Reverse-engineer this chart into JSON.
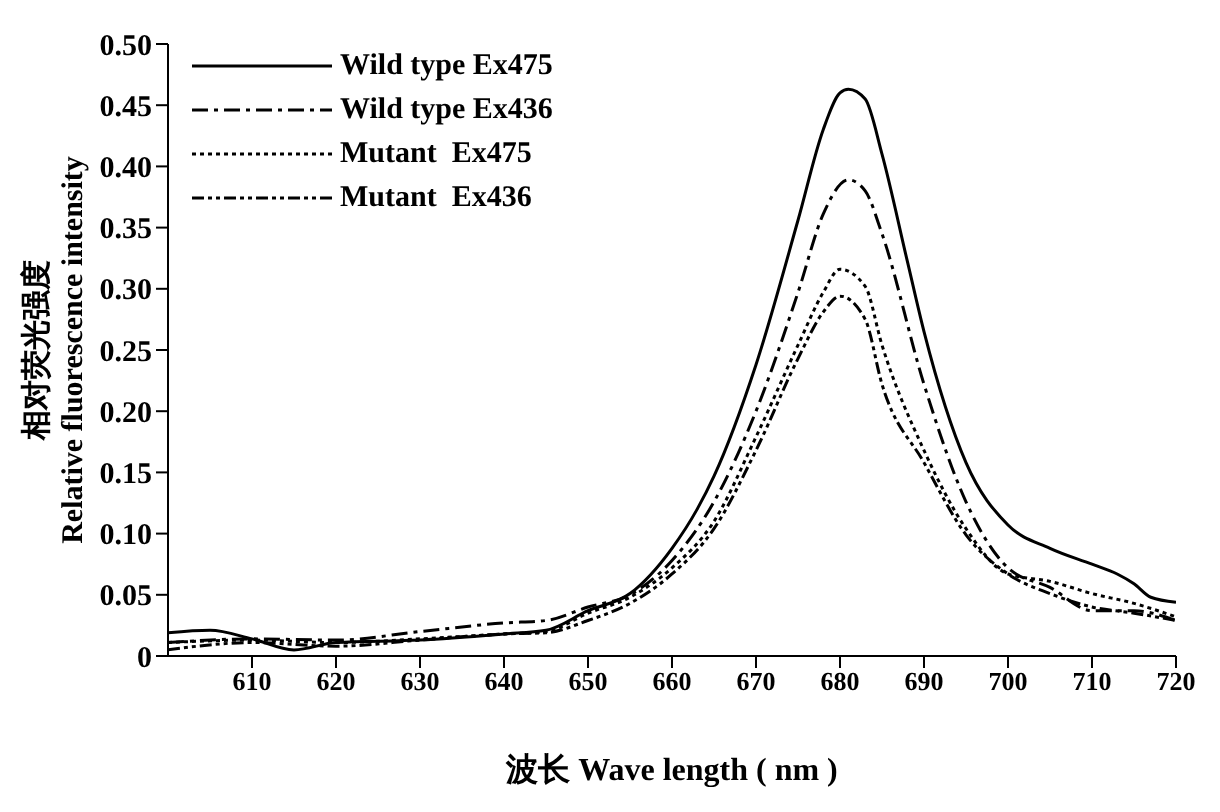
{
  "chart_data": {
    "type": "line",
    "xlabel": "波长  Wave length ( nm )",
    "ylabel": "相对荧光强度\nRelative fluorescence intensity",
    "xlim": [
      600,
      720
    ],
    "xticks": [
      610,
      620,
      630,
      640,
      650,
      660,
      670,
      680,
      690,
      700,
      710,
      720
    ],
    "ylim": [
      0,
      0.5
    ],
    "yticks": [
      0,
      {
        "value": 0.05,
        "label": "0.05"
      },
      {
        "value": 0.1,
        "label": "0.10"
      },
      {
        "value": 0.15,
        "label": "0.15"
      },
      {
        "value": 0.2,
        "label": "0.20"
      },
      {
        "value": 0.25,
        "label": "0.25"
      },
      {
        "value": 0.3,
        "label": "0.30"
      },
      {
        "value": 0.35,
        "label": "0.35"
      },
      {
        "value": 0.4,
        "label": "0.40"
      },
      {
        "value": 0.45,
        "label": "0.45"
      },
      {
        "value": 0.5,
        "label": "0.50"
      }
    ],
    "grid": false,
    "legend": "top left",
    "marker": "none",
    "series": [
      {
        "name": "Wild type Ex475",
        "color": "#000000",
        "line_style": "solid",
        "x": [
          600,
          605,
          610,
          615,
          620,
          630,
          640,
          645,
          650,
          655,
          660,
          663,
          665,
          670,
          675,
          678,
          680,
          681,
          683,
          685,
          688,
          690,
          695,
          700,
          705,
          710,
          713,
          715,
          717,
          720
        ],
        "values": [
          0.019,
          0.021,
          0.014,
          0.005,
          0.011,
          0.013,
          0.018,
          0.021,
          0.037,
          0.051,
          0.088,
          0.12,
          0.147,
          0.238,
          0.356,
          0.43,
          0.46,
          0.463,
          0.455,
          0.41,
          0.323,
          0.265,
          0.158,
          0.107,
          0.088,
          0.075,
          0.067,
          0.059,
          0.048,
          0.044
        ]
      },
      {
        "name": "Wild type Ex436",
        "color": "#000000",
        "line_style": "dashed",
        "x": [
          600,
          610,
          620,
          630,
          640,
          645,
          650,
          655,
          660,
          665,
          670,
          675,
          678,
          681,
          683,
          685,
          690,
          695,
          700,
          705,
          710,
          715,
          720
        ],
        "values": [
          0.011,
          0.014,
          0.013,
          0.02,
          0.027,
          0.029,
          0.04,
          0.05,
          0.078,
          0.126,
          0.2,
          0.297,
          0.361,
          0.389,
          0.38,
          0.345,
          0.222,
          0.126,
          0.072,
          0.056,
          0.037,
          0.037,
          0.029
        ]
      },
      {
        "name": "Mutant  Ex475",
        "color": "#000000",
        "line_style": "dotted",
        "x": [
          600,
          610,
          620,
          630,
          640,
          645,
          650,
          655,
          660,
          665,
          670,
          675,
          678,
          680,
          683,
          685,
          690,
          695,
          700,
          705,
          710,
          715,
          720
        ],
        "values": [
          0.011,
          0.013,
          0.011,
          0.014,
          0.018,
          0.02,
          0.035,
          0.048,
          0.072,
          0.11,
          0.179,
          0.254,
          0.297,
          0.316,
          0.302,
          0.254,
          0.168,
          0.104,
          0.067,
          0.061,
          0.051,
          0.043,
          0.032
        ]
      },
      {
        "name": "Mutant  Ex436",
        "color": "#000000",
        "line_style": "dashdot",
        "x": [
          600,
          610,
          620,
          630,
          640,
          645,
          650,
          655,
          660,
          665,
          670,
          675,
          678,
          680,
          683,
          685,
          690,
          695,
          700,
          705,
          710,
          715,
          720
        ],
        "values": [
          0.005,
          0.011,
          0.008,
          0.013,
          0.018,
          0.019,
          0.029,
          0.043,
          0.067,
          0.104,
          0.168,
          0.243,
          0.281,
          0.294,
          0.275,
          0.222,
          0.158,
          0.099,
          0.067,
          0.051,
          0.04,
          0.035,
          0.029
        ]
      }
    ]
  }
}
